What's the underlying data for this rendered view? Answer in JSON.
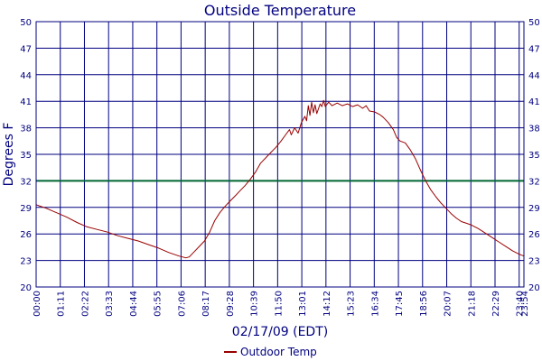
{
  "chart_data": {
    "type": "line",
    "title": "Outside Temperature",
    "xlabel": "02/17/09 (EDT)",
    "ylabel": "Degrees F",
    "ylim": [
      20,
      50
    ],
    "yticks": [
      20,
      23,
      26,
      29,
      32,
      35,
      38,
      41,
      44,
      47,
      50
    ],
    "xlim": [
      "00:00",
      "23:54"
    ],
    "xticks": [
      "00:00",
      "01:11",
      "02:22",
      "03:33",
      "04:44",
      "05:55",
      "07:06",
      "08:17",
      "09:28",
      "10:39",
      "11:50",
      "13:01",
      "14:12",
      "15:23",
      "16:34",
      "17:45",
      "18:56",
      "20:07",
      "21:18",
      "22:29",
      "23:40",
      "23:54"
    ],
    "grid": true,
    "background": "#ffffff",
    "grid_color": "#000080",
    "reference_line": {
      "value": 32,
      "color": "#006633"
    },
    "legend": {
      "placement": "bottom-center"
    },
    "series": [
      {
        "name": "Outdoor Temp",
        "color": "#990000",
        "points": [
          [
            "00:00",
            29.3
          ],
          [
            "00:30",
            28.9
          ],
          [
            "01:00",
            28.4
          ],
          [
            "01:30",
            27.9
          ],
          [
            "02:00",
            27.3
          ],
          [
            "02:30",
            26.8
          ],
          [
            "03:00",
            26.5
          ],
          [
            "03:30",
            26.2
          ],
          [
            "04:00",
            25.8
          ],
          [
            "04:30",
            25.5
          ],
          [
            "05:00",
            25.2
          ],
          [
            "05:30",
            24.8
          ],
          [
            "06:00",
            24.4
          ],
          [
            "06:30",
            23.9
          ],
          [
            "07:00",
            23.5
          ],
          [
            "07:20",
            23.3
          ],
          [
            "07:30",
            23.4
          ],
          [
            "07:45",
            24.0
          ],
          [
            "08:00",
            24.6
          ],
          [
            "08:15",
            25.2
          ],
          [
            "08:30",
            26.2
          ],
          [
            "08:45",
            27.5
          ],
          [
            "09:00",
            28.4
          ],
          [
            "09:15",
            29.1
          ],
          [
            "09:30",
            29.7
          ],
          [
            "09:45",
            30.3
          ],
          [
            "10:00",
            30.9
          ],
          [
            "10:15",
            31.5
          ],
          [
            "10:30",
            32.2
          ],
          [
            "10:45",
            33.0
          ],
          [
            "11:00",
            34.0
          ],
          [
            "11:15",
            34.6
          ],
          [
            "11:30",
            35.2
          ],
          [
            "11:45",
            35.8
          ],
          [
            "12:00",
            36.5
          ],
          [
            "12:15",
            37.3
          ],
          [
            "12:25",
            37.8
          ],
          [
            "12:30",
            37.2
          ],
          [
            "12:40",
            38.0
          ],
          [
            "12:50",
            37.4
          ],
          [
            "13:00",
            38.6
          ],
          [
            "13:10",
            39.3
          ],
          [
            "13:15",
            38.8
          ],
          [
            "13:20",
            40.5
          ],
          [
            "13:25",
            39.4
          ],
          [
            "13:30",
            40.9
          ],
          [
            "13:35",
            39.7
          ],
          [
            "13:40",
            40.6
          ],
          [
            "13:45",
            39.6
          ],
          [
            "13:55",
            40.7
          ],
          [
            "14:00",
            40.4
          ],
          [
            "14:05",
            41.1
          ],
          [
            "14:10",
            40.4
          ],
          [
            "14:20",
            40.9
          ],
          [
            "14:30",
            40.5
          ],
          [
            "14:45",
            40.8
          ],
          [
            "15:00",
            40.5
          ],
          [
            "15:15",
            40.7
          ],
          [
            "15:30",
            40.4
          ],
          [
            "15:45",
            40.6
          ],
          [
            "16:00",
            40.2
          ],
          [
            "16:10",
            40.5
          ],
          [
            "16:20",
            39.9
          ],
          [
            "16:35",
            39.8
          ],
          [
            "16:50",
            39.5
          ],
          [
            "17:00",
            39.2
          ],
          [
            "17:15",
            38.6
          ],
          [
            "17:30",
            37.8
          ],
          [
            "17:40",
            36.9
          ],
          [
            "17:50",
            36.5
          ],
          [
            "18:05",
            36.3
          ],
          [
            "18:20",
            35.5
          ],
          [
            "18:35",
            34.5
          ],
          [
            "18:50",
            33.2
          ],
          [
            "19:05",
            32.0
          ],
          [
            "19:20",
            31.0
          ],
          [
            "19:35",
            30.2
          ],
          [
            "19:50",
            29.5
          ],
          [
            "20:05",
            28.9
          ],
          [
            "20:20",
            28.3
          ],
          [
            "20:35",
            27.8
          ],
          [
            "20:50",
            27.4
          ],
          [
            "21:05",
            27.2
          ],
          [
            "21:20",
            27.0
          ],
          [
            "21:40",
            26.6
          ],
          [
            "22:00",
            26.1
          ],
          [
            "22:20",
            25.6
          ],
          [
            "22:40",
            25.1
          ],
          [
            "23:00",
            24.6
          ],
          [
            "23:20",
            24.1
          ],
          [
            "23:40",
            23.7
          ],
          [
            "23:54",
            23.5
          ]
        ]
      }
    ]
  }
}
